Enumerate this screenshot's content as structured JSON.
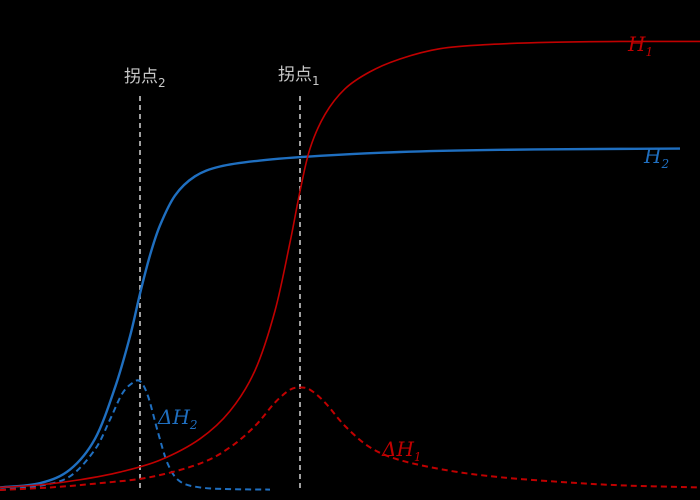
{
  "chart_data": {
    "type": "line",
    "title": "",
    "xlabel": "",
    "ylabel": "",
    "background": "#000000",
    "grid": false,
    "legend": "none",
    "colors": {
      "H1": "#c00000",
      "H2": "#1f6fc0",
      "inflection": "#c8c8c8"
    },
    "series": [
      {
        "id": "H1",
        "label_main": "H",
        "label_sub": "1",
        "style": "solid",
        "color": "#c00000",
        "x": [
          0,
          40,
          80,
          120,
          160,
          200,
          230,
          255,
          275,
          290,
          300,
          310,
          325,
          345,
          370,
          400,
          440,
          490,
          550,
          620,
          700
        ],
        "y": [
          0.6,
          1.2,
          2.4,
          4.2,
          7.0,
          12.0,
          18.5,
          28.0,
          42.0,
          58.0,
          70.0,
          80.0,
          88.0,
          94.0,
          98.0,
          101.0,
          103.4,
          104.4,
          104.9,
          105.1,
          105.1
        ]
      },
      {
        "id": "H2",
        "label_main": "H",
        "label_sub": "2",
        "style": "solid",
        "color": "#1f6fc0",
        "x": [
          0,
          40,
          70,
          95,
          115,
          130,
          140,
          150,
          160,
          175,
          195,
          220,
          260,
          320,
          400,
          500,
          600,
          680
        ],
        "y": [
          0.6,
          1.6,
          4.8,
          12.0,
          24.0,
          36.0,
          46.0,
          55.0,
          62.0,
          69.0,
          73.5,
          75.8,
          77.2,
          78.3,
          79.2,
          79.7,
          79.9,
          80.0
        ]
      },
      {
        "id": "dH2",
        "label_main": "ΔH",
        "label_sub": "2",
        "style": "dashed",
        "color": "#1f6fc0",
        "x": [
          0,
          40,
          70,
          95,
          110,
          122,
          132,
          140,
          148,
          158,
          168,
          180,
          200,
          230,
          270
        ],
        "y": [
          0.0,
          1.0,
          3.2,
          9.5,
          16.5,
          22.5,
          25.0,
          25.5,
          22.0,
          13.5,
          6.0,
          2.0,
          0.6,
          0.2,
          0.1
        ]
      },
      {
        "id": "dH1",
        "label_main": "ΔH",
        "label_sub": "1",
        "style": "dashed",
        "color": "#c00000",
        "x": [
          0,
          50,
          100,
          150,
          200,
          230,
          255,
          275,
          290,
          300,
          310,
          325,
          345,
          370,
          400,
          450,
          500,
          560,
          620,
          700
        ],
        "y": [
          0.0,
          0.6,
          1.6,
          3.0,
          6.2,
          10.0,
          15.0,
          20.5,
          23.5,
          24.0,
          23.5,
          20.5,
          15.0,
          10.0,
          7.0,
          4.5,
          3.0,
          1.9,
          1.1,
          0.6
        ]
      }
    ],
    "inflection_lines": [
      {
        "id": "inflection-2",
        "label_main": "拐点",
        "label_sub": "2",
        "x": 140
      },
      {
        "id": "inflection-1",
        "label_main": "拐点",
        "label_sub": "1",
        "x": 300
      }
    ],
    "xlim": [
      0,
      700
    ],
    "ylim": [
      0,
      112
    ]
  }
}
